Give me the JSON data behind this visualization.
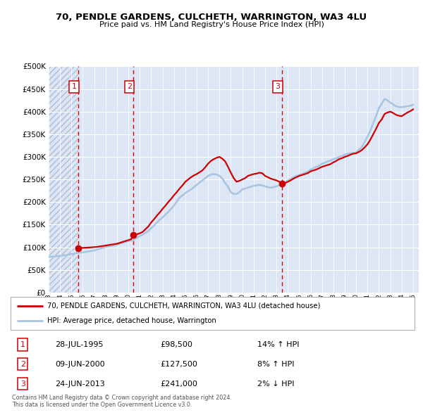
{
  "title": "70, PENDLE GARDENS, CULCHETH, WARRINGTON, WA3 4LU",
  "subtitle": "Price paid vs. HM Land Registry's House Price Index (HPI)",
  "xlim": [
    1993.0,
    2025.5
  ],
  "ylim": [
    0,
    500000
  ],
  "yticks": [
    0,
    50000,
    100000,
    150000,
    200000,
    250000,
    300000,
    350000,
    400000,
    450000,
    500000
  ],
  "bg_color": "#dce6f5",
  "hatch_bg_color": "#c8d4e8",
  "grid_color": "#ffffff",
  "sale_points": [
    {
      "label": "1",
      "date_year": 1995.57,
      "price": 98500
    },
    {
      "label": "2",
      "date_year": 2000.44,
      "price": 127500
    },
    {
      "label": "3",
      "date_year": 2013.48,
      "price": 241000
    }
  ],
  "vline_color": "#dd0000",
  "property_line_color": "#cc0000",
  "hpi_line_color": "#a8c4e0",
  "legend_property_label": "70, PENDLE GARDENS, CULCHETH, WARRINGTON, WA3 4LU (detached house)",
  "legend_hpi_label": "HPI: Average price, detached house, Warrington",
  "table_rows": [
    {
      "num": "1",
      "date": "28-JUL-1995",
      "price": "£98,500",
      "hpi": "14% ↑ HPI"
    },
    {
      "num": "2",
      "date": "09-JUN-2000",
      "price": "£127,500",
      "hpi": "8% ↑ HPI"
    },
    {
      "num": "3",
      "date": "24-JUN-2013",
      "price": "£241,000",
      "hpi": "2% ↓ HPI"
    }
  ],
  "footer": "Contains HM Land Registry data © Crown copyright and database right 2024.\nThis data is licensed under the Open Government Licence v3.0.",
  "years": [
    1993.0,
    1993.25,
    1993.5,
    1993.75,
    1994.0,
    1994.25,
    1994.5,
    1994.75,
    1995.0,
    1995.25,
    1995.5,
    1995.57,
    1995.75,
    1996.0,
    1996.25,
    1996.5,
    1996.75,
    1997.0,
    1997.25,
    1997.5,
    1997.75,
    1998.0,
    1998.25,
    1998.5,
    1998.75,
    1999.0,
    1999.25,
    1999.5,
    1999.75,
    2000.0,
    2000.25,
    2000.44,
    2000.5,
    2000.75,
    2001.0,
    2001.25,
    2001.5,
    2001.75,
    2002.0,
    2002.25,
    2002.5,
    2002.75,
    2003.0,
    2003.25,
    2003.5,
    2003.75,
    2004.0,
    2004.25,
    2004.5,
    2004.75,
    2005.0,
    2005.25,
    2005.5,
    2005.75,
    2006.0,
    2006.25,
    2006.5,
    2006.75,
    2007.0,
    2007.25,
    2007.5,
    2007.75,
    2008.0,
    2008.25,
    2008.5,
    2008.75,
    2009.0,
    2009.25,
    2009.5,
    2009.75,
    2010.0,
    2010.25,
    2010.5,
    2010.75,
    2011.0,
    2011.25,
    2011.5,
    2011.75,
    2012.0,
    2012.25,
    2012.5,
    2012.75,
    2013.0,
    2013.25,
    2013.48,
    2013.5,
    2013.75,
    2014.0,
    2014.25,
    2014.5,
    2014.75,
    2015.0,
    2015.25,
    2015.5,
    2015.75,
    2016.0,
    2016.25,
    2016.5,
    2016.75,
    2017.0,
    2017.25,
    2017.5,
    2017.75,
    2018.0,
    2018.25,
    2018.5,
    2018.75,
    2019.0,
    2019.25,
    2019.5,
    2019.75,
    2020.0,
    2020.25,
    2020.5,
    2020.75,
    2021.0,
    2021.25,
    2021.5,
    2021.75,
    2022.0,
    2022.25,
    2022.5,
    2022.75,
    2023.0,
    2023.25,
    2023.5,
    2023.75,
    2024.0,
    2024.25,
    2024.5,
    2024.75,
    2025.0
  ],
  "hpi_vals": [
    79000,
    79500,
    80000,
    80500,
    81000,
    82000,
    83000,
    84000,
    85000,
    86000,
    87000,
    87500,
    88000,
    89000,
    90000,
    91000,
    92000,
    93000,
    95000,
    97000,
    99000,
    101000,
    102000,
    103000,
    104000,
    106000,
    108000,
    110000,
    112000,
    114000,
    115000,
    116000,
    118000,
    121000,
    125000,
    128000,
    132000,
    136000,
    142000,
    148000,
    155000,
    161000,
    166000,
    172000,
    178000,
    185000,
    192000,
    201000,
    210000,
    215000,
    220000,
    224000,
    228000,
    233000,
    238000,
    243000,
    248000,
    253000,
    258000,
    261000,
    262000,
    261000,
    258000,
    252000,
    242000,
    234000,
    222000,
    218000,
    218000,
    222000,
    228000,
    230000,
    232000,
    234000,
    236000,
    237000,
    238000,
    237000,
    235000,
    233000,
    232000,
    233000,
    235000,
    237000,
    240000,
    242000,
    244000,
    248000,
    251000,
    255000,
    258000,
    260000,
    262000,
    265000,
    267000,
    272000,
    275000,
    278000,
    280000,
    285000,
    287000,
    290000,
    292000,
    295000,
    297000,
    300000,
    302000,
    305000,
    307000,
    308000,
    309000,
    310000,
    316000,
    322000,
    333000,
    345000,
    358000,
    375000,
    390000,
    408000,
    418000,
    428000,
    425000,
    420000,
    416000,
    412000,
    410000,
    410000,
    411000,
    412000,
    413000,
    415000
  ],
  "prop_vals": [
    null,
    null,
    null,
    null,
    null,
    null,
    null,
    null,
    null,
    null,
    null,
    98500,
    98500,
    98800,
    99000,
    99500,
    100000,
    100500,
    101000,
    102000,
    103000,
    104000,
    105000,
    106000,
    107000,
    108000,
    110000,
    112000,
    114000,
    116000,
    118000,
    127500,
    127500,
    129000,
    131000,
    134000,
    140000,
    146000,
    155000,
    162000,
    170000,
    177000,
    185000,
    192000,
    200000,
    207000,
    215000,
    222000,
    230000,
    237000,
    245000,
    250000,
    255000,
    259000,
    262000,
    266000,
    270000,
    277000,
    285000,
    291000,
    295000,
    298000,
    300000,
    296000,
    290000,
    278000,
    265000,
    253000,
    245000,
    247000,
    250000,
    253000,
    258000,
    260000,
    262000,
    263000,
    265000,
    264000,
    258000,
    255000,
    252000,
    250000,
    248000,
    245000,
    241000,
    241000,
    242000,
    245000,
    248000,
    252000,
    255000,
    258000,
    260000,
    262000,
    264000,
    268000,
    270000,
    272000,
    275000,
    278000,
    280000,
    282000,
    284000,
    288000,
    291000,
    295000,
    297000,
    300000,
    302000,
    305000,
    307000,
    308000,
    311000,
    315000,
    321000,
    328000,
    338000,
    350000,
    362000,
    375000,
    383000,
    395000,
    398000,
    400000,
    397000,
    393000,
    391000,
    390000,
    394000,
    398000,
    401000,
    405000
  ]
}
